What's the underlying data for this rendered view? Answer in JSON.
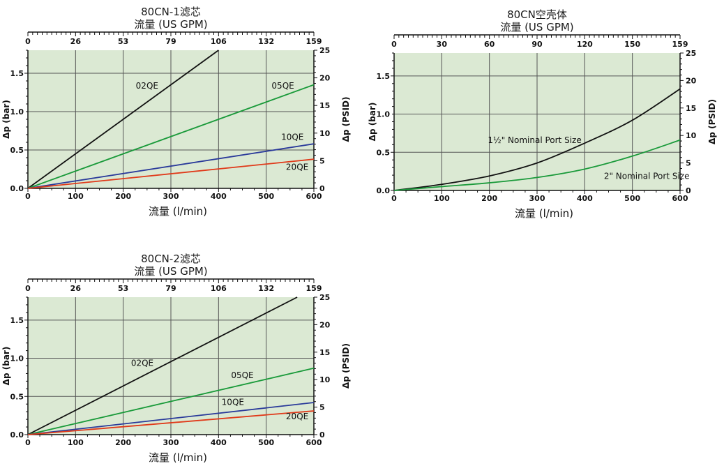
{
  "chart_data": [
    {
      "type": "line",
      "title": "80CN-1滤芯",
      "top_axis_label": "流量 (US GPM)",
      "top_ticks": [
        "0",
        "26",
        "53",
        "79",
        "106",
        "132",
        "159"
      ],
      "xlabel": "流量 (l/min)",
      "x_ticks": [
        "0",
        "100",
        "200",
        "300",
        "400",
        "500",
        "600"
      ],
      "xlim": [
        0,
        600
      ],
      "ylabel": "Δp (bar)",
      "y_ticks": [
        "0.0",
        "0.5",
        "1.0",
        "1.5"
      ],
      "ylim": [
        0,
        1.8
      ],
      "y2label": "Δp (PSID)",
      "y2_ticks": [
        "0",
        "5",
        "10",
        "15",
        "20",
        "25"
      ],
      "y2lim": [
        0,
        25
      ],
      "grid": true,
      "series": [
        {
          "name": "02QE",
          "color": "#111111",
          "x": [
            0,
            400
          ],
          "y": [
            0,
            1.8
          ],
          "label_pos": [
            250,
            1.3
          ]
        },
        {
          "name": "05QE",
          "color": "#1a9a3a",
          "x": [
            0,
            600
          ],
          "y": [
            0,
            1.35
          ],
          "label_pos": [
            535,
            1.3
          ]
        },
        {
          "name": "10QE",
          "color": "#2a3a9a",
          "x": [
            0,
            600
          ],
          "y": [
            0,
            0.58
          ],
          "label_pos": [
            555,
            0.63
          ]
        },
        {
          "name": "20QE",
          "color": "#e03a1a",
          "x": [
            0,
            600
          ],
          "y": [
            0,
            0.38
          ],
          "label_pos": [
            565,
            0.24
          ]
        }
      ]
    },
    {
      "type": "line",
      "title": "80CN空壳体",
      "top_axis_label": "流量 (US GPM)",
      "top_ticks": [
        "0",
        "30",
        "60",
        "90",
        "120",
        "150",
        "159"
      ],
      "xlabel": "流量 (l/min)",
      "x_ticks": [
        "0",
        "100",
        "200",
        "300",
        "400",
        "500",
        "600"
      ],
      "xlim": [
        0,
        600
      ],
      "ylabel": "Δp (bar)",
      "y_ticks": [
        "0.0",
        "0.5",
        "1.0",
        "1.5"
      ],
      "ylim": [
        0,
        1.8
      ],
      "y2label": "Δp (PSID)",
      "y2_ticks": [
        "0",
        "5",
        "10",
        "15",
        "20",
        "25"
      ],
      "y2lim": [
        0,
        25
      ],
      "grid": true,
      "series": [
        {
          "name": "1½\" Nominal Port Size",
          "color": "#111111",
          "x": [
            0,
            100,
            200,
            300,
            400,
            500,
            600
          ],
          "y": [
            0,
            0.08,
            0.19,
            0.36,
            0.62,
            0.92,
            1.33
          ],
          "label_pos": [
            295,
            0.62
          ]
        },
        {
          "name": "2\" Nominal Port Size",
          "color": "#1a9a3a",
          "x": [
            0,
            100,
            200,
            300,
            400,
            500,
            600
          ],
          "y": [
            0,
            0.05,
            0.1,
            0.17,
            0.28,
            0.45,
            0.66
          ],
          "label_pos": [
            530,
            0.15
          ]
        }
      ]
    },
    {
      "type": "line",
      "title": "80CN-2滤芯",
      "top_axis_label": "流量 (US GPM)",
      "top_ticks": [
        "0",
        "26",
        "53",
        "79",
        "106",
        "132",
        "159"
      ],
      "xlabel": "流量 (l/min)",
      "x_ticks": [
        "0",
        "100",
        "200",
        "300",
        "400",
        "500",
        "600"
      ],
      "xlim": [
        0,
        600
      ],
      "ylabel": "Δp (bar)",
      "y_ticks": [
        "0.0",
        "0.5",
        "1.0",
        "1.5"
      ],
      "ylim": [
        0,
        1.8
      ],
      "y2label": "Δp (PSID)",
      "y2_ticks": [
        "0",
        "5",
        "10",
        "15",
        "20",
        "25"
      ],
      "y2lim": [
        0,
        25
      ],
      "grid": true,
      "series": [
        {
          "name": "02QE",
          "color": "#111111",
          "x": [
            0,
            565
          ],
          "y": [
            0,
            1.8
          ],
          "label_pos": [
            240,
            0.9
          ]
        },
        {
          "name": "05QE",
          "color": "#1a9a3a",
          "x": [
            0,
            600
          ],
          "y": [
            0,
            0.87
          ],
          "label_pos": [
            450,
            0.74
          ]
        },
        {
          "name": "10QE",
          "color": "#2a3a9a",
          "x": [
            0,
            600
          ],
          "y": [
            0,
            0.42
          ],
          "label_pos": [
            430,
            0.39
          ]
        },
        {
          "name": "20QE",
          "color": "#e03a1a",
          "x": [
            0,
            600
          ],
          "y": [
            0,
            0.31
          ],
          "label_pos": [
            565,
            0.2
          ]
        }
      ]
    }
  ]
}
